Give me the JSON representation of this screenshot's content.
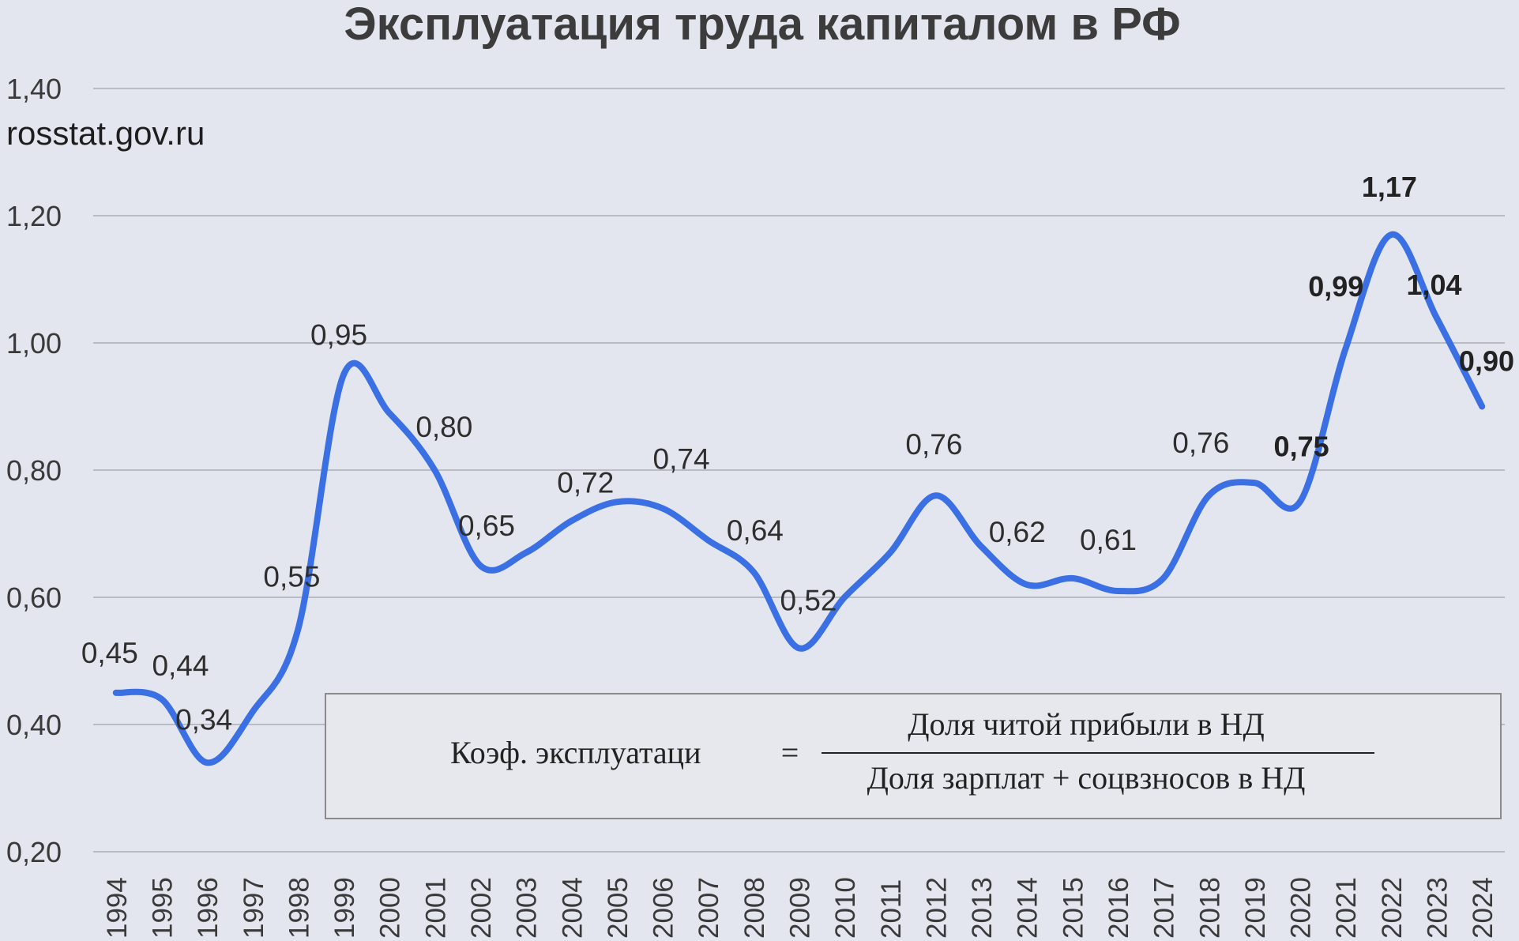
{
  "chart_data": {
    "type": "line",
    "title": "Эксплуатация труда капиталом в РФ",
    "source": "rosstat.gov.ru",
    "ylim": [
      0.2,
      1.4
    ],
    "yticks": [
      "0,20",
      "0,40",
      "0,60",
      "0,80",
      "1,00",
      "1,20",
      "1,40"
    ],
    "grid": true,
    "line_color": "#3a70e3",
    "x": [
      "1994",
      "1995",
      "1996",
      "1997",
      "1998",
      "1999",
      "2000",
      "2001",
      "2002",
      "2003",
      "2004",
      "2005",
      "2006",
      "2007",
      "2008",
      "2009",
      "2010",
      "2011",
      "2012",
      "2013",
      "2014",
      "2015",
      "2016",
      "2017",
      "2018",
      "2019",
      "2020",
      "2021",
      "2022",
      "2023",
      "2024"
    ],
    "values": [
      0.45,
      0.44,
      0.34,
      0.42,
      0.55,
      0.95,
      0.89,
      0.8,
      0.65,
      0.67,
      0.72,
      0.75,
      0.74,
      0.69,
      0.64,
      0.52,
      0.6,
      0.67,
      0.76,
      0.68,
      0.62,
      0.63,
      0.61,
      0.63,
      0.76,
      0.78,
      0.75,
      0.99,
      1.17,
      1.04,
      0.9
    ],
    "labels": [
      {
        "year": "1994",
        "text": "0,45",
        "bold": false
      },
      {
        "year": "1995",
        "text": "0,44",
        "bold": false
      },
      {
        "year": "1996",
        "text": "0,34",
        "bold": false
      },
      {
        "year": "1998",
        "text": "0,55",
        "bold": false
      },
      {
        "year": "1999",
        "text": "0,95",
        "bold": false
      },
      {
        "year": "2001",
        "text": "0,80",
        "bold": false
      },
      {
        "year": "2002",
        "text": "0,65",
        "bold": false
      },
      {
        "year": "2004",
        "text": "0,72",
        "bold": false
      },
      {
        "year": "2006",
        "text": "0,74",
        "bold": false
      },
      {
        "year": "2008",
        "text": "0,64",
        "bold": false
      },
      {
        "year": "2009",
        "text": "0,52",
        "bold": false
      },
      {
        "year": "2012",
        "text": "0,76",
        "bold": false
      },
      {
        "year": "2014",
        "text": "0,62",
        "bold": false
      },
      {
        "year": "2016",
        "text": "0,61",
        "bold": false
      },
      {
        "year": "2018",
        "text": "0,76",
        "bold": false
      },
      {
        "year": "2020",
        "text": "0,75",
        "bold": true
      },
      {
        "year": "2021",
        "text": "0,99",
        "bold": true
      },
      {
        "year": "2022",
        "text": "1,17",
        "bold": true
      },
      {
        "year": "2023",
        "text": "1,04",
        "bold": true
      },
      {
        "year": "2024",
        "text": "0,90",
        "bold": true
      }
    ],
    "formula": {
      "left": "Коэф. эксплуатаци",
      "equals": "=",
      "numerator": "Доля читой прибыли в НД",
      "denominator": "Доля зарплат + соцвзносов в НД"
    }
  }
}
